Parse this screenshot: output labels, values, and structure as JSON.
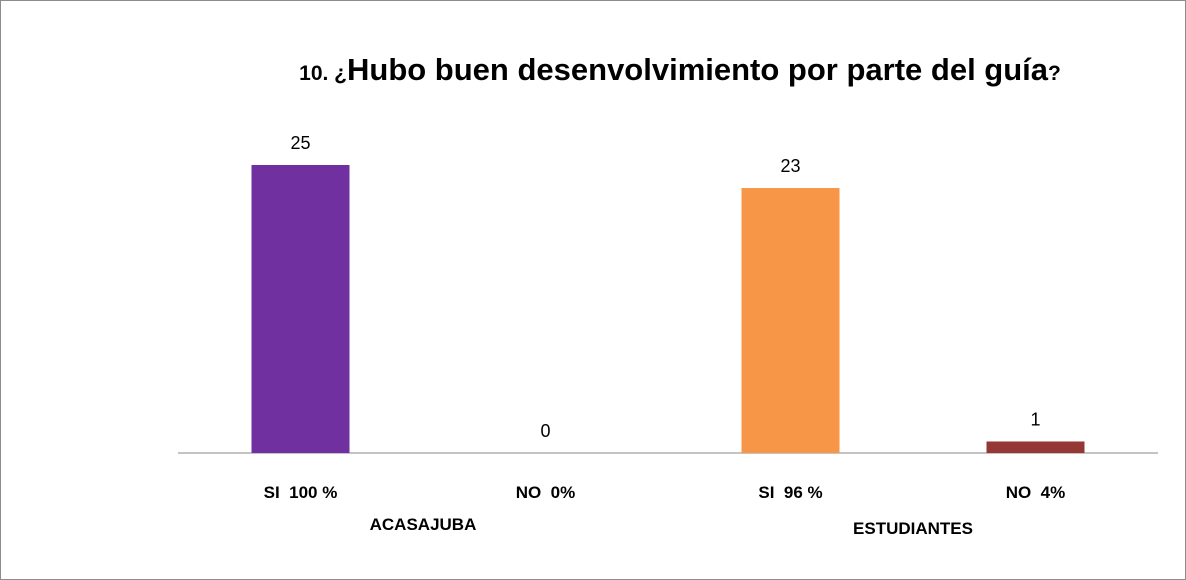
{
  "chart_data": {
    "type": "bar",
    "title_prefix": "10. ¿",
    "title": "Hubo buen desenvolvimiento por parte del guía",
    "title_suffix": "?",
    "categories": [
      "SI  100 %",
      "NO  0%",
      "SI  96 %",
      "NO  4%"
    ],
    "groups": [
      "ACASAJUBA",
      "ESTUDIANTES"
    ],
    "values": [
      25,
      0,
      23,
      1
    ],
    "colors": [
      "#7030a0",
      "#4f81bd",
      "#f79646",
      "#953735"
    ]
  }
}
